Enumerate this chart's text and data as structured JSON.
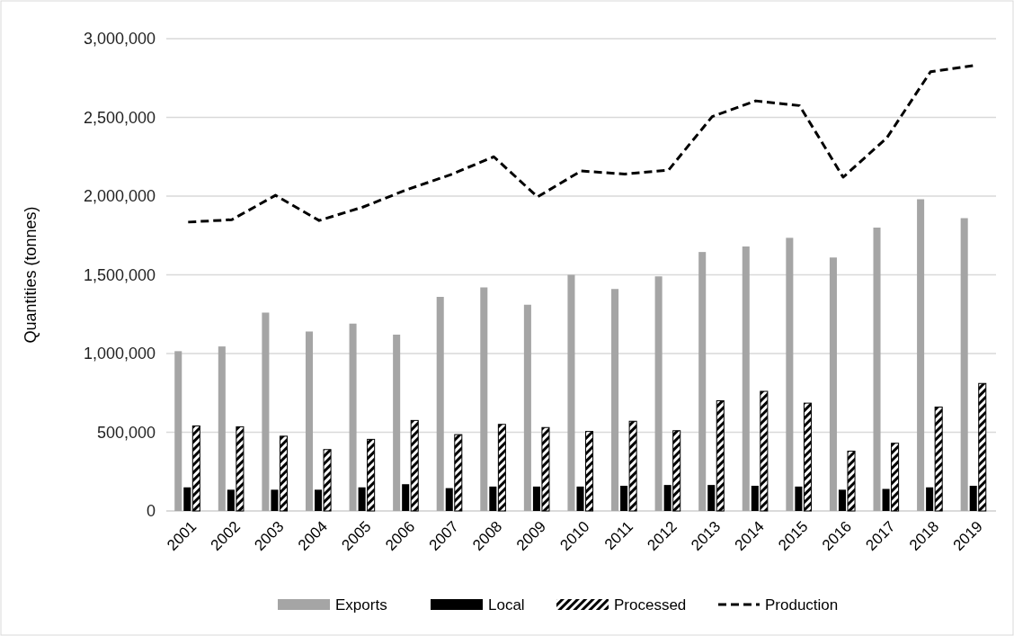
{
  "chart_data": {
    "type": "bar",
    "ylabel": "Quantities (tonnes)",
    "categories": [
      "2001",
      "2002",
      "2003",
      "2004",
      "2005",
      "2006",
      "2007",
      "2008",
      "2009",
      "2010",
      "2011",
      "2012",
      "2013",
      "2014",
      "2015",
      "2016",
      "2017",
      "2018",
      "2019"
    ],
    "series": [
      {
        "name": "Exports",
        "color": "#a5a5a5",
        "values": [
          1015000,
          1045000,
          1260000,
          1140000,
          1190000,
          1120000,
          1360000,
          1420000,
          1310000,
          1500000,
          1410000,
          1490000,
          1645000,
          1680000,
          1735000,
          1610000,
          1800000,
          1980000,
          1860000
        ]
      },
      {
        "name": "Local",
        "color": "#000000",
        "values": [
          150000,
          135000,
          135000,
          135000,
          150000,
          170000,
          145000,
          155000,
          155000,
          155000,
          160000,
          165000,
          165000,
          160000,
          155000,
          135000,
          140000,
          150000,
          160000
        ]
      },
      {
        "name": "Processed",
        "color": "#000000",
        "values": [
          540000,
          535000,
          475000,
          390000,
          455000,
          575000,
          485000,
          550000,
          530000,
          505000,
          570000,
          510000,
          700000,
          760000,
          685000,
          380000,
          430000,
          660000,
          810000
        ]
      },
      {
        "name": "Production",
        "type": "line",
        "color": "#000000",
        "line_style": "dashed",
        "values": [
          1835000,
          1850000,
          2005000,
          1845000,
          1930000,
          2040000,
          2135000,
          2250000,
          1995000,
          2160000,
          2140000,
          2165000,
          2505000,
          2605000,
          2575000,
          2120000,
          2370000,
          2790000,
          2830000
        ]
      }
    ],
    "ylim": [
      0,
      3000000
    ],
    "yticks": [
      {
        "value": 0,
        "label": "0"
      },
      {
        "value": 500000,
        "label": "500,000"
      },
      {
        "value": 1000000,
        "label": "1,000,000"
      },
      {
        "value": 1500000,
        "label": "1,500,000"
      },
      {
        "value": 2000000,
        "label": "2,000,000"
      },
      {
        "value": 2500000,
        "label": "2,500,000"
      },
      {
        "value": 3000000,
        "label": "3,000,000"
      }
    ],
    "grid": "y",
    "legend": "bottom"
  }
}
